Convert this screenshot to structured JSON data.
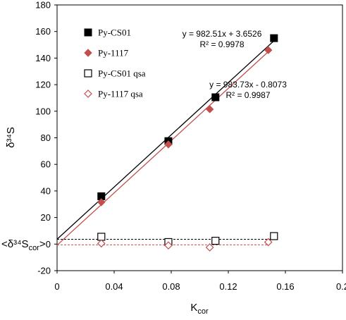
{
  "chart_data": {
    "type": "scatter",
    "x_label_main": "K",
    "x_label_sub": "cor",
    "y_label": "δ³⁴S",
    "y_zero_label": "<δ³⁴S",
    "y_zero_label_sub": "cor",
    "y_zero_label_end": ">",
    "xlim": [
      0,
      0.2
    ],
    "ylim": [
      -20,
      180
    ],
    "x_ticks": [
      0,
      0.04,
      0.08,
      0.12,
      0.16,
      0.2
    ],
    "x_tick_labels": [
      "0",
      "0.04",
      "0.08",
      "0.12",
      "0.16",
      "0.2"
    ],
    "y_ticks": [
      -20,
      0,
      20,
      40,
      60,
      80,
      100,
      120,
      140,
      160,
      180
    ],
    "y_tick_labels": [
      "-20",
      "0",
      "20",
      "40",
      "60",
      "80",
      "100",
      "120",
      "140",
      "160",
      "180"
    ],
    "grid": false,
    "legend_position": "top-left",
    "series": [
      {
        "name": "Py-CS01",
        "marker": "filled-square",
        "color": "#000000",
        "x": [
          0.031,
          0.078,
          0.111,
          0.152
        ],
        "y": [
          36.0,
          77.5,
          110.5,
          155.0
        ]
      },
      {
        "name": "Py-1117",
        "marker": "filled-diamond",
        "color": "#c0504d",
        "x": [
          0.031,
          0.078,
          0.107,
          0.148
        ],
        "y": [
          31.5,
          75.0,
          101.5,
          146.0
        ]
      },
      {
        "name": "Py-CS01 qsa",
        "marker": "open-square",
        "color": "#000000",
        "x": [
          0.031,
          0.078,
          0.111,
          0.152
        ],
        "y": [
          5.5,
          1.5,
          2.5,
          6.0
        ]
      },
      {
        "name": "Py-1117 qsa",
        "marker": "open-diamond",
        "color": "#c0504d",
        "x": [
          0.031,
          0.078,
          0.107,
          0.148
        ],
        "y": [
          0.5,
          -1.0,
          -2.5,
          1.5
        ]
      }
    ],
    "trendlines": [
      {
        "series": "Py-CS01",
        "slope": 982.51,
        "intercept": 3.6526,
        "color": "#000000",
        "style": "solid",
        "x_range": [
          0,
          0.152
        ]
      },
      {
        "series": "Py-1117",
        "slope": 983.73,
        "intercept": -0.8073,
        "color": "#c0504d",
        "style": "solid",
        "x_range": [
          0,
          0.148
        ]
      },
      {
        "series": "Py-CS01 qsa",
        "slope": 0,
        "intercept": 3.6,
        "color": "#000000",
        "style": "dashed",
        "x_range": [
          0,
          0.152
        ]
      },
      {
        "series": "Py-1117 qsa",
        "slope": 0,
        "intercept": -0.6,
        "color": "#c0504d",
        "style": "dashed",
        "x_range": [
          0,
          0.148
        ]
      }
    ],
    "annotations": [
      {
        "equation": "y = 982.51x + 3.6526",
        "r2": "R² = 0.9978"
      },
      {
        "equation": "y = 983.73x - 0.8073",
        "r2": "R² = 0.9987"
      }
    ]
  }
}
